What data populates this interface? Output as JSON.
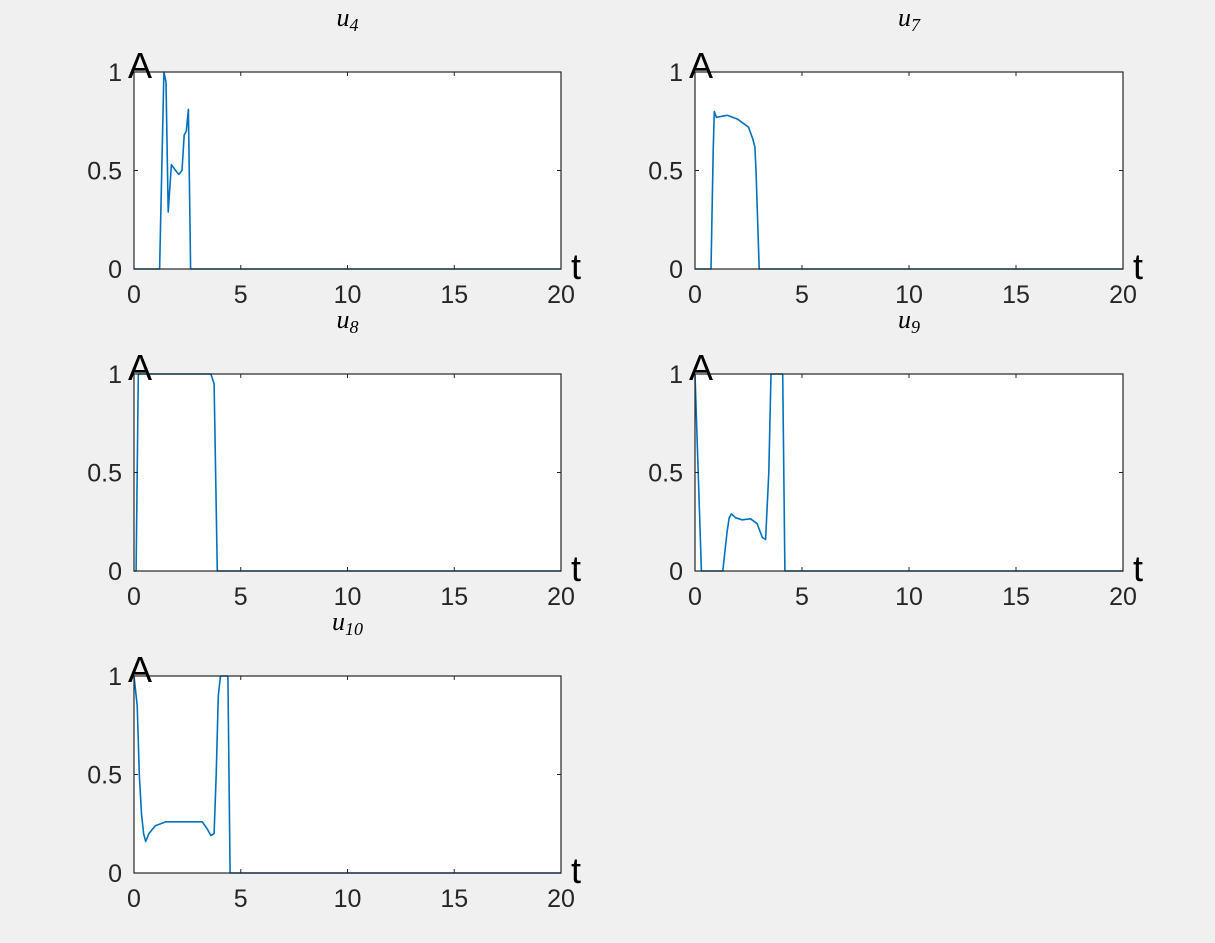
{
  "figure": {
    "background": "#f0f0f0",
    "axes_background": "#ffffff",
    "line_color": "#0072bd",
    "axis_color": "#262626"
  },
  "chart_data": [
    {
      "type": "line",
      "title": "u4",
      "title_base": "u",
      "title_sub": "4",
      "xlabel": "t",
      "ylabel": "A",
      "xlim": [
        0,
        20
      ],
      "ylim": [
        0,
        1
      ],
      "xticks": [
        0,
        5,
        10,
        15,
        20
      ],
      "yticks": [
        0,
        0.5,
        1
      ],
      "xtick_labels": [
        "0",
        "5",
        "10",
        "15",
        "20"
      ],
      "ytick_labels": [
        "0",
        "0.5",
        "1"
      ],
      "grid": false,
      "series": [
        {
          "x": [
            0,
            1.2,
            1.4,
            1.5,
            1.6,
            1.75,
            1.95,
            2.1,
            2.25,
            2.35,
            2.45,
            2.55,
            2.65,
            20
          ],
          "y": [
            0,
            0,
            1.0,
            0.95,
            0.29,
            0.53,
            0.5,
            0.48,
            0.5,
            0.68,
            0.7,
            0.81,
            0,
            0
          ]
        }
      ]
    },
    {
      "type": "line",
      "title": "u7",
      "title_base": "u",
      "title_sub": "7",
      "xlabel": "t",
      "ylabel": "A",
      "xlim": [
        0,
        20
      ],
      "ylim": [
        0,
        1
      ],
      "xticks": [
        0,
        5,
        10,
        15,
        20
      ],
      "yticks": [
        0,
        0.5,
        1
      ],
      "xtick_labels": [
        "0",
        "5",
        "10",
        "15",
        "20"
      ],
      "ytick_labels": [
        "0",
        "0.5",
        "1"
      ],
      "grid": false,
      "series": [
        {
          "x": [
            0,
            0.75,
            0.85,
            0.9,
            1.0,
            1.5,
            2.0,
            2.5,
            2.7,
            2.8,
            2.85,
            3.0,
            20
          ],
          "y": [
            0,
            0,
            0.6,
            0.8,
            0.77,
            0.78,
            0.76,
            0.72,
            0.66,
            0.62,
            0.5,
            0,
            0
          ]
        }
      ]
    },
    {
      "type": "line",
      "title": "u8",
      "title_base": "u",
      "title_sub": "8",
      "xlabel": "t",
      "ylabel": "A",
      "xlim": [
        0,
        20
      ],
      "ylim": [
        0,
        1
      ],
      "xticks": [
        0,
        5,
        10,
        15,
        20
      ],
      "yticks": [
        0,
        0.5,
        1
      ],
      "xtick_labels": [
        "0",
        "5",
        "10",
        "15",
        "20"
      ],
      "ytick_labels": [
        "0",
        "0.5",
        "1"
      ],
      "grid": false,
      "series": [
        {
          "x": [
            0,
            0.1,
            0.2,
            3.6,
            3.75,
            3.9,
            20
          ],
          "y": [
            0,
            0,
            1,
            1,
            0.95,
            0,
            0
          ]
        }
      ]
    },
    {
      "type": "line",
      "title": "u9",
      "title_base": "u",
      "title_sub": "9",
      "xlabel": "t",
      "ylabel": "A",
      "xlim": [
        0,
        20
      ],
      "ylim": [
        0,
        1
      ],
      "xticks": [
        0,
        5,
        10,
        15,
        20
      ],
      "yticks": [
        0,
        0.5,
        1
      ],
      "xtick_labels": [
        "0",
        "5",
        "10",
        "15",
        "20"
      ],
      "ytick_labels": [
        "0",
        "0.5",
        "1"
      ],
      "grid": false,
      "series": [
        {
          "x": [
            0,
            0.3,
            1.3,
            1.5,
            1.6,
            1.7,
            1.9,
            2.2,
            2.6,
            2.9,
            3.15,
            3.3,
            3.45,
            3.55,
            4.1,
            4.2,
            20
          ],
          "y": [
            1,
            0,
            0,
            0.2,
            0.27,
            0.29,
            0.27,
            0.26,
            0.265,
            0.24,
            0.17,
            0.16,
            0.5,
            1,
            1,
            0,
            0
          ]
        }
      ]
    },
    {
      "type": "line",
      "title": "u10",
      "title_base": "u",
      "title_sub": "10",
      "xlabel": "t",
      "ylabel": "A",
      "xlim": [
        0,
        20
      ],
      "ylim": [
        0,
        1
      ],
      "xticks": [
        0,
        5,
        10,
        15,
        20
      ],
      "yticks": [
        0,
        0.5,
        1
      ],
      "xtick_labels": [
        "0",
        "5",
        "10",
        "15",
        "20"
      ],
      "ytick_labels": [
        "0",
        "0.5",
        "1"
      ],
      "grid": false,
      "series": [
        {
          "x": [
            0,
            0.15,
            0.25,
            0.35,
            0.45,
            0.55,
            0.7,
            1.0,
            1.5,
            2.5,
            3.2,
            3.45,
            3.6,
            3.75,
            3.85,
            3.95,
            4.05,
            4.4,
            4.5,
            20
          ],
          "y": [
            1,
            0.85,
            0.5,
            0.3,
            0.2,
            0.16,
            0.2,
            0.24,
            0.26,
            0.26,
            0.26,
            0.22,
            0.19,
            0.2,
            0.5,
            0.9,
            1,
            1,
            0,
            0
          ]
        }
      ]
    }
  ]
}
